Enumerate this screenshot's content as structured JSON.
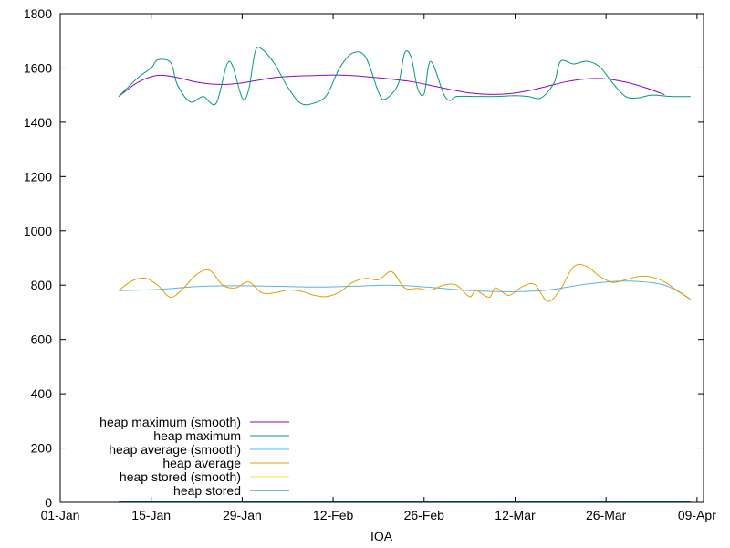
{
  "chart_data": {
    "type": "line",
    "title": "",
    "xlabel": "IOA",
    "ylabel": "",
    "x_tick_labels": [
      "01-Jan",
      "15-Jan",
      "29-Jan",
      "12-Feb",
      "26-Feb",
      "12-Mar",
      "26-Mar",
      "09-Apr"
    ],
    "y_tick_labels": [
      "0",
      "200",
      "400",
      "600",
      "800",
      "1000",
      "1200",
      "1400",
      "1600",
      "1800"
    ],
    "xlim": [
      "2024-01-01",
      "2024-04-09"
    ],
    "ylim": [
      0,
      1800
    ],
    "grid": false,
    "legend_position": "bottom-left",
    "x_is_date": true,
    "series": [
      {
        "name": "heap maximum (smooth)",
        "color": "#9400d3",
        "x": [
          "2024-01-10",
          "2024-01-13",
          "2024-01-16",
          "2024-01-19",
          "2024-01-22",
          "2024-01-25",
          "2024-01-28",
          "2024-01-31",
          "2024-02-03",
          "2024-02-06",
          "2024-02-09",
          "2024-02-12",
          "2024-02-15",
          "2024-02-18",
          "2024-02-21",
          "2024-02-24",
          "2024-02-27",
          "2024-03-01",
          "2024-03-04",
          "2024-03-07",
          "2024-03-10",
          "2024-03-13",
          "2024-03-16",
          "2024-03-19",
          "2024-03-22",
          "2024-03-25",
          "2024-03-28",
          "2024-03-31",
          "2024-04-03"
        ],
        "y": [
          1495,
          1548,
          1573,
          1565,
          1548,
          1540,
          1542,
          1553,
          1565,
          1570,
          1572,
          1574,
          1572,
          1566,
          1559,
          1550,
          1536,
          1521,
          1508,
          1503,
          1505,
          1516,
          1533,
          1550,
          1560,
          1560,
          1548,
          1528,
          1502
        ]
      },
      {
        "name": "heap maximum",
        "color": "#009e73",
        "x": [
          "2024-01-10",
          "2024-01-13",
          "2024-01-15",
          "2024-01-16",
          "2024-01-18",
          "2024-01-19",
          "2024-01-21",
          "2024-01-23",
          "2024-01-25",
          "2024-01-27",
          "2024-01-29",
          "2024-01-30",
          "2024-01-31",
          "2024-02-01",
          "2024-02-03",
          "2024-02-05",
          "2024-02-07",
          "2024-02-09",
          "2024-02-11",
          "2024-02-13",
          "2024-02-15",
          "2024-02-17",
          "2024-02-19",
          "2024-02-20",
          "2024-02-22",
          "2024-02-23",
          "2024-02-24",
          "2024-02-25",
          "2024-02-26",
          "2024-02-27",
          "2024-02-29",
          "2024-03-01",
          "2024-03-02",
          "2024-03-05",
          "2024-03-08",
          "2024-03-11",
          "2024-03-13",
          "2024-03-15",
          "2024-03-17",
          "2024-03-18",
          "2024-03-20",
          "2024-03-22",
          "2024-03-24",
          "2024-03-26",
          "2024-03-28",
          "2024-03-30",
          "2024-04-01",
          "2024-04-04",
          "2024-04-07"
        ],
        "y": [
          1495,
          1565,
          1600,
          1630,
          1620,
          1540,
          1475,
          1495,
          1470,
          1625,
          1490,
          1520,
          1660,
          1670,
          1615,
          1530,
          1470,
          1470,
          1500,
          1600,
          1655,
          1640,
          1510,
          1485,
          1540,
          1655,
          1640,
          1525,
          1505,
          1625,
          1505,
          1480,
          1495,
          1495,
          1495,
          1498,
          1495,
          1490,
          1545,
          1625,
          1615,
          1625,
          1605,
          1545,
          1495,
          1490,
          1500,
          1495,
          1495
        ]
      },
      {
        "name": "heap average (smooth)",
        "color": "#56b4e9",
        "x": [
          "2024-01-10",
          "2024-01-16",
          "2024-01-22",
          "2024-01-28",
          "2024-02-03",
          "2024-02-09",
          "2024-02-15",
          "2024-02-21",
          "2024-02-27",
          "2024-03-04",
          "2024-03-10",
          "2024-03-16",
          "2024-03-22",
          "2024-03-28",
          "2024-04-03",
          "2024-04-07"
        ],
        "y": [
          780,
          784,
          795,
          798,
          796,
          793,
          796,
          800,
          792,
          780,
          776,
          782,
          804,
          815,
          800,
          748
        ]
      },
      {
        "name": "heap average",
        "color": "#e69f00",
        "x": [
          "2024-01-10",
          "2024-01-12",
          "2024-01-14",
          "2024-01-16",
          "2024-01-18",
          "2024-01-20",
          "2024-01-22",
          "2024-01-24",
          "2024-01-26",
          "2024-01-28",
          "2024-01-30",
          "2024-02-01",
          "2024-02-03",
          "2024-02-05",
          "2024-02-07",
          "2024-02-09",
          "2024-02-11",
          "2024-02-13",
          "2024-02-15",
          "2024-02-17",
          "2024-02-19",
          "2024-02-21",
          "2024-02-23",
          "2024-02-25",
          "2024-02-27",
          "2024-02-29",
          "2024-03-02",
          "2024-03-04",
          "2024-03-05",
          "2024-03-07",
          "2024-03-08",
          "2024-03-10",
          "2024-03-12",
          "2024-03-14",
          "2024-03-16",
          "2024-03-18",
          "2024-03-20",
          "2024-03-22",
          "2024-03-24",
          "2024-03-26",
          "2024-03-28",
          "2024-03-30",
          "2024-04-01",
          "2024-04-03",
          "2024-04-05",
          "2024-04-07"
        ],
        "y": [
          780,
          815,
          826,
          800,
          755,
          790,
          840,
          855,
          800,
          790,
          812,
          772,
          772,
          782,
          778,
          763,
          758,
          775,
          810,
          825,
          820,
          850,
          790,
          788,
          782,
          800,
          800,
          757,
          780,
          755,
          790,
          762,
          793,
          803,
          740,
          785,
          868,
          870,
          833,
          810,
          820,
          832,
          830,
          812,
          780,
          748
        ]
      },
      {
        "name": "heap stored (smooth)",
        "color": "#f0e442",
        "x": [
          "2024-01-10",
          "2024-04-07"
        ],
        "y": [
          5,
          5
        ]
      },
      {
        "name": "heap stored",
        "color": "#0072b2",
        "x": [
          "2024-01-10",
          "2024-04-07"
        ],
        "y": [
          3,
          3
        ]
      }
    ]
  }
}
